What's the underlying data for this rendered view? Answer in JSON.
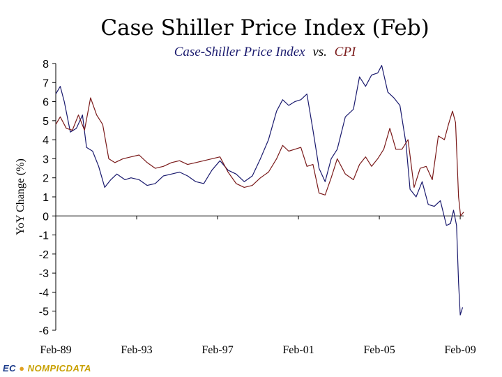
{
  "chart_data": {
    "type": "line",
    "title": "Case Shiller Price Index (Feb)",
    "subtitle": {
      "series_a": "Case-Shiller Price Index",
      "vs": "vs.",
      "series_b": "CPI"
    },
    "xlabel": "",
    "ylabel": "YoY Change (%)",
    "ylim": [
      -6,
      8
    ],
    "yticks": [
      "8",
      "7",
      "6",
      "5",
      "4",
      "3",
      "2",
      "1",
      "0",
      "-1",
      "-2",
      "-3",
      "-4",
      "-5",
      "-6"
    ],
    "xticks": [
      "Feb-89",
      "Feb-93",
      "Feb-97",
      "Feb-01",
      "Feb-05",
      "Feb-09"
    ],
    "xlim": [
      1989.08,
      2009.25
    ],
    "grid": false,
    "legend": "none",
    "series": [
      {
        "name": "Case-Shiller Price Index",
        "color": "#1a1a6e",
        "x": [
          1989.08,
          1989.3,
          1989.5,
          1989.8,
          1990.1,
          1990.4,
          1990.6,
          1990.9,
          1991.2,
          1991.5,
          1991.8,
          1992.1,
          1992.5,
          1992.8,
          1993.2,
          1993.6,
          1994.0,
          1994.4,
          1994.8,
          1995.2,
          1995.6,
          1996.0,
          1996.4,
          1996.8,
          1997.2,
          1997.6,
          1998.0,
          1998.4,
          1998.8,
          1999.2,
          1999.6,
          2000.0,
          2000.3,
          2000.6,
          2000.9,
          2001.2,
          2001.5,
          2001.8,
          2002.1,
          2002.4,
          2002.7,
          2003.0,
          2003.4,
          2003.8,
          2004.1,
          2004.4,
          2004.7,
          2005.0,
          2005.2,
          2005.5,
          2005.8,
          2006.1,
          2006.4,
          2006.6,
          2006.9,
          2007.2,
          2007.5,
          2007.8,
          2008.1,
          2008.4,
          2008.6,
          2008.75,
          2008.9,
          2009.0,
          2009.08,
          2009.2
        ],
        "values": [
          6.4,
          6.8,
          6.0,
          4.4,
          4.6,
          5.3,
          3.6,
          3.4,
          2.6,
          1.5,
          1.9,
          2.2,
          1.9,
          2.0,
          1.9,
          1.6,
          1.7,
          2.1,
          2.2,
          2.3,
          2.1,
          1.8,
          1.7,
          2.4,
          2.9,
          2.4,
          2.2,
          1.8,
          2.1,
          3.0,
          4.0,
          5.5,
          6.1,
          5.8,
          6.0,
          6.1,
          6.4,
          4.5,
          2.5,
          1.8,
          3.0,
          3.5,
          5.2,
          5.6,
          7.3,
          6.8,
          7.4,
          7.5,
          7.9,
          6.5,
          6.2,
          5.8,
          3.8,
          1.4,
          1.0,
          1.8,
          0.6,
          0.5,
          0.8,
          -0.5,
          -0.4,
          0.3,
          -0.5,
          -3.5,
          -5.2,
          -4.8
        ]
      },
      {
        "name": "CPI",
        "color": "#7a1a1a",
        "x": [
          1989.08,
          1989.3,
          1989.6,
          1989.9,
          1990.2,
          1990.5,
          1990.8,
          1991.1,
          1991.4,
          1991.7,
          1992.0,
          1992.4,
          1992.8,
          1993.2,
          1993.6,
          1994.0,
          1994.4,
          1994.8,
          1995.2,
          1995.6,
          1996.0,
          1996.4,
          1996.8,
          1997.2,
          1997.6,
          1998.0,
          1998.4,
          1998.8,
          1999.2,
          1999.6,
          2000.0,
          2000.3,
          2000.6,
          2000.9,
          2001.2,
          2001.5,
          2001.8,
          2002.1,
          2002.4,
          2002.7,
          2003.0,
          2003.4,
          2003.8,
          2004.1,
          2004.4,
          2004.7,
          2005.0,
          2005.3,
          2005.6,
          2005.9,
          2006.2,
          2006.5,
          2006.8,
          2007.1,
          2007.4,
          2007.7,
          2008.0,
          2008.3,
          2008.5,
          2008.7,
          2008.85,
          2009.0,
          2009.1,
          2009.25
        ],
        "values": [
          4.8,
          5.2,
          4.6,
          4.5,
          5.3,
          4.5,
          6.2,
          5.3,
          4.8,
          3.0,
          2.8,
          3.0,
          3.1,
          3.2,
          2.8,
          2.5,
          2.6,
          2.8,
          2.9,
          2.7,
          2.8,
          2.9,
          3.0,
          3.1,
          2.3,
          1.7,
          1.5,
          1.6,
          2.0,
          2.3,
          3.0,
          3.7,
          3.4,
          3.5,
          3.6,
          2.6,
          2.7,
          1.2,
          1.1,
          2.0,
          3.0,
          2.2,
          1.9,
          2.7,
          3.1,
          2.6,
          3.0,
          3.5,
          4.6,
          3.5,
          3.5,
          4.0,
          1.5,
          2.5,
          2.6,
          1.9,
          4.2,
          4.0,
          4.8,
          5.5,
          4.9,
          1.0,
          0.0,
          0.2
        ]
      }
    ]
  },
  "branding": {
    "logo_text_a": "EC",
    "logo_text_b": "NOMPICDATA"
  }
}
